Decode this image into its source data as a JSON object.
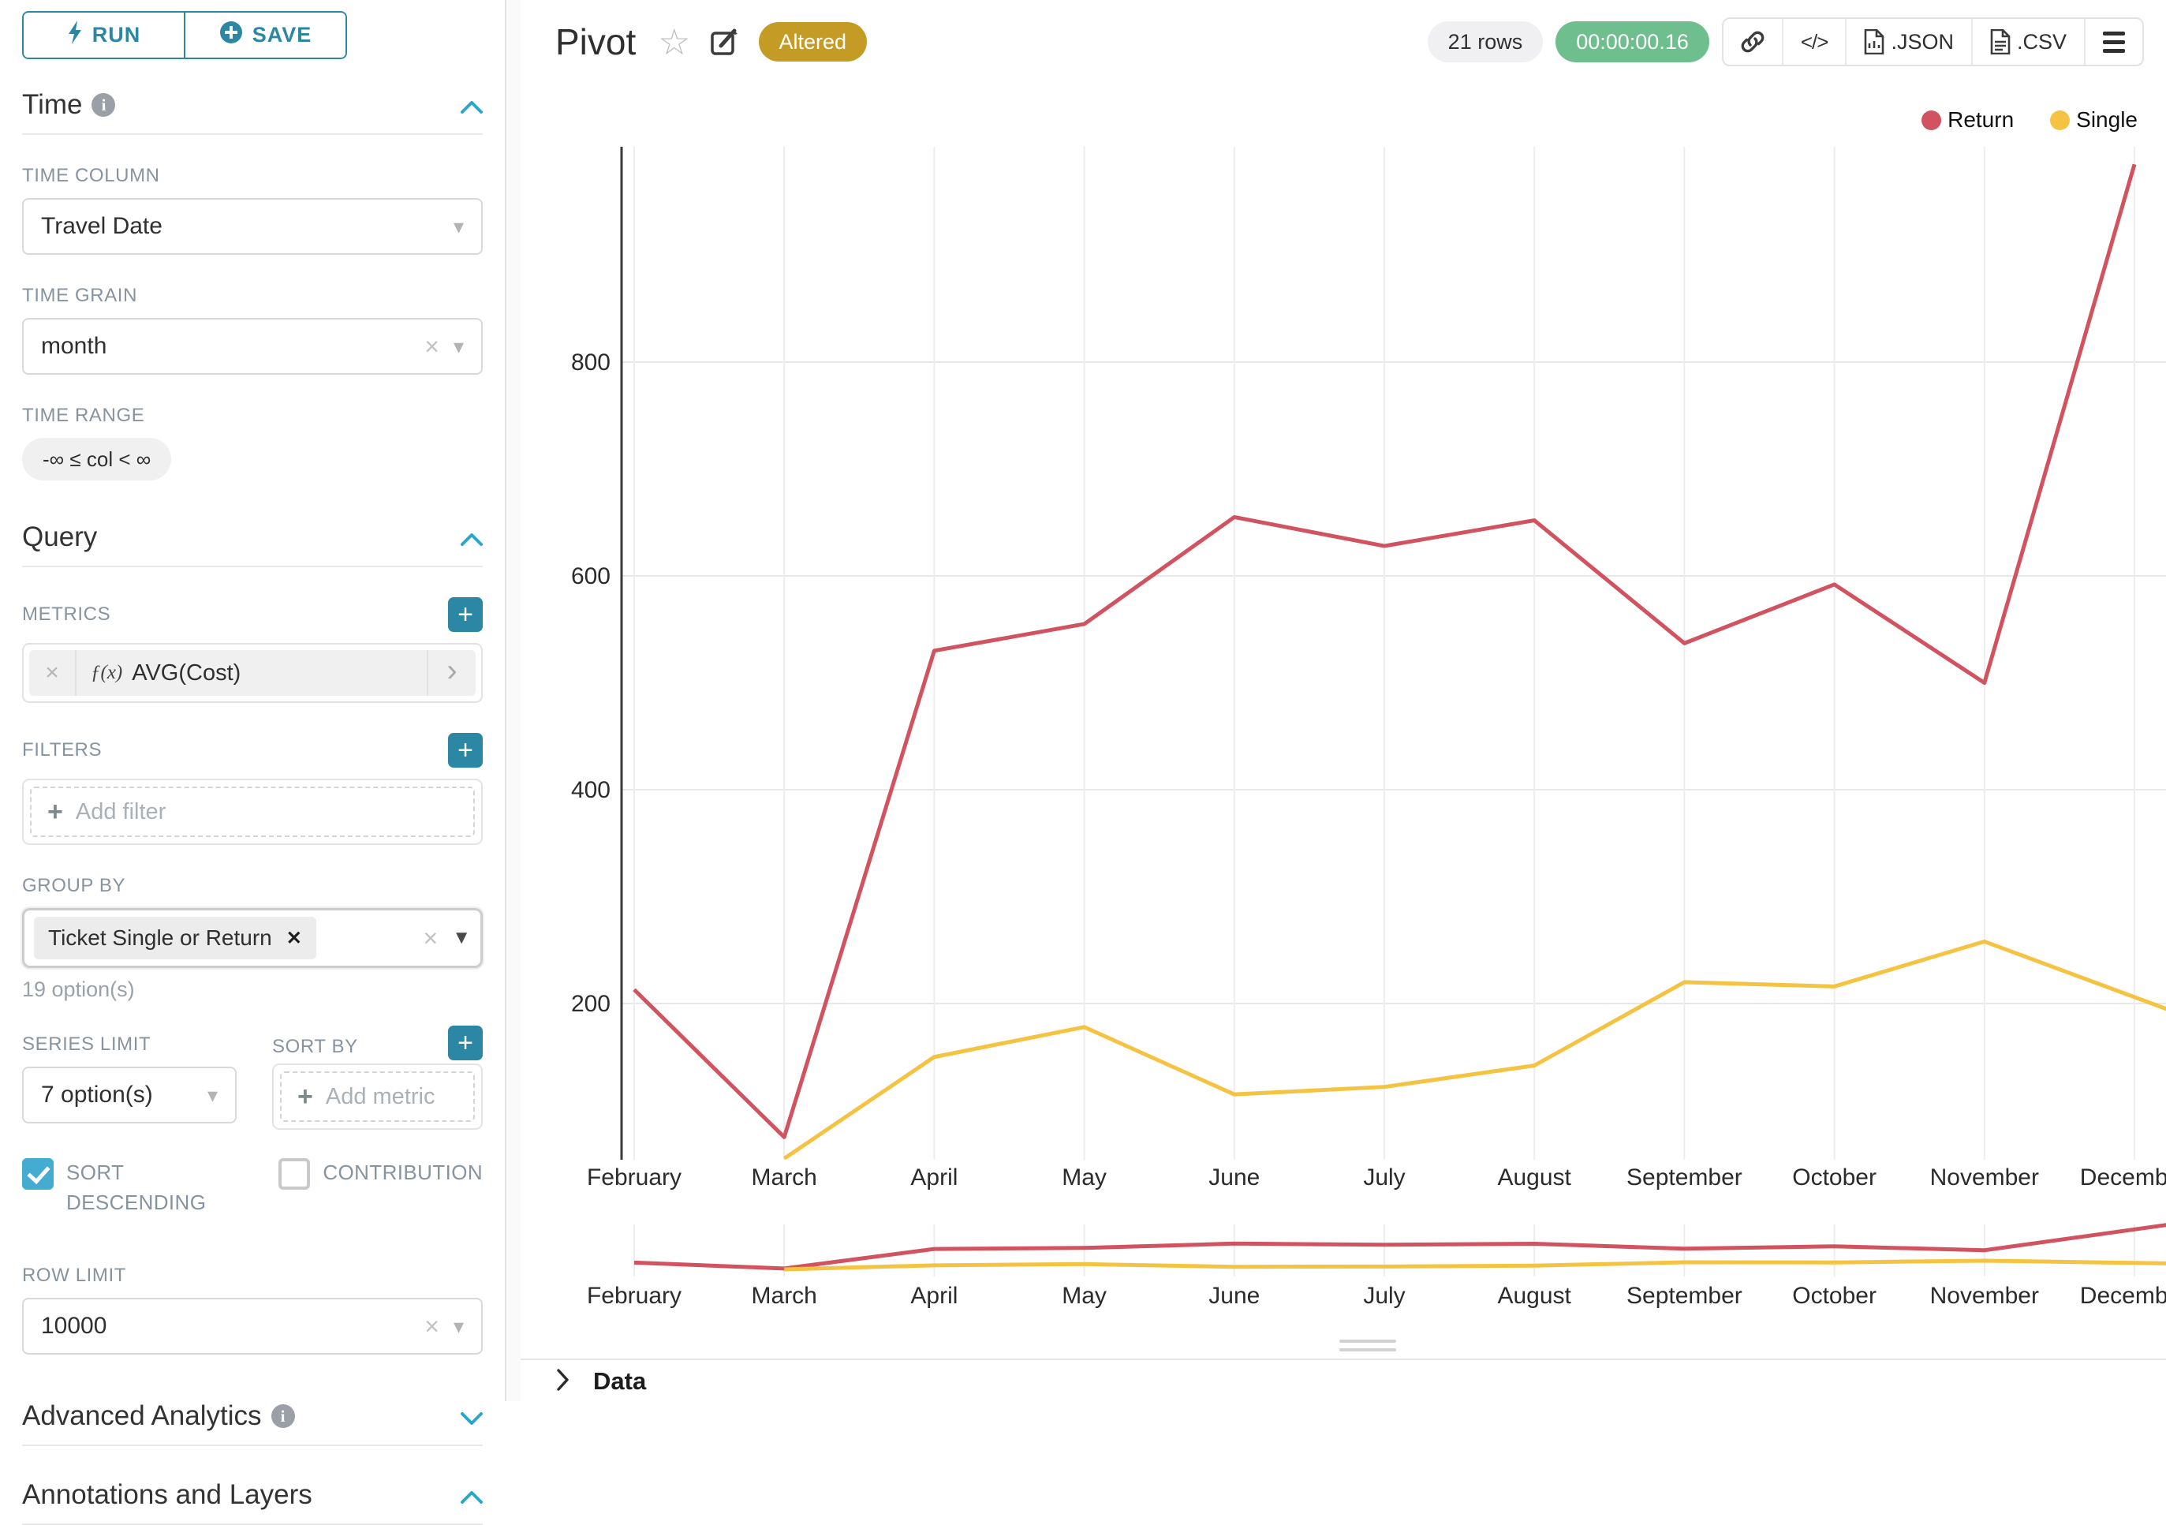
{
  "sidebar": {
    "run_label": "RUN",
    "save_label": "SAVE",
    "time": {
      "section_title": "Time",
      "time_column_label": "TIME COLUMN",
      "time_column_value": "Travel Date",
      "time_grain_label": "TIME GRAIN",
      "time_grain_value": "month",
      "time_range_label": "TIME RANGE",
      "time_range_value": "-∞ ≤ col < ∞"
    },
    "query": {
      "section_title": "Query",
      "metrics_label": "METRICS",
      "metric_value": "AVG(Cost)",
      "filters_label": "FILTERS",
      "add_filter_label": "Add filter",
      "group_by_label": "GROUP BY",
      "group_by_value": "Ticket Single or Return",
      "group_by_hint": "19 option(s)",
      "series_limit_label": "SERIES LIMIT",
      "series_limit_value": "7 option(s)",
      "sort_by_label": "SORT BY",
      "add_metric_label": "Add metric",
      "sort_descending_label": "SORT DESCENDING",
      "contribution_label": "CONTRIBUTION",
      "row_limit_label": "ROW LIMIT",
      "row_limit_value": "10000"
    },
    "advanced_title": "Advanced Analytics",
    "annotations_title": "Annotations and Layers"
  },
  "header": {
    "title": "Pivot",
    "badge": "Altered",
    "rows_badge": "21 rows",
    "timer_badge": "00:00:00.16",
    "json_label": ".JSON",
    "csv_label": ".CSV"
  },
  "icons": {
    "star": "☆",
    "caret_down": "▾",
    "caret_down_filled": "▼",
    "clear": "×",
    "tag_remove": "✕",
    "chevron_right": "›",
    "plus": "+",
    "code": "</>",
    "fx": "ƒ(x)"
  },
  "data_panel": {
    "title": "Data"
  },
  "chart_data": {
    "type": "line",
    "title": "Pivot",
    "categories": [
      "February",
      "March",
      "April",
      "May",
      "June",
      "July",
      "August",
      "September",
      "October",
      "November",
      "December"
    ],
    "series": [
      {
        "name": "Return",
        "color": "#d15360",
        "values": [
          213,
          75,
          530,
          555,
          655,
          628,
          652,
          537,
          592,
          500,
          985
        ]
      },
      {
        "name": "Single",
        "color": "#f5c342",
        "values": [
          null,
          55,
          150,
          178,
          115,
          122,
          142,
          220,
          216,
          258,
          206
        ]
      }
    ],
    "xlabel": "",
    "ylabel": "",
    "ylim": [
      0,
      1000
    ],
    "yticks": [
      200,
      400,
      600,
      800
    ],
    "grid": true,
    "legend_position": "top-right",
    "has_mini_preview": true
  }
}
